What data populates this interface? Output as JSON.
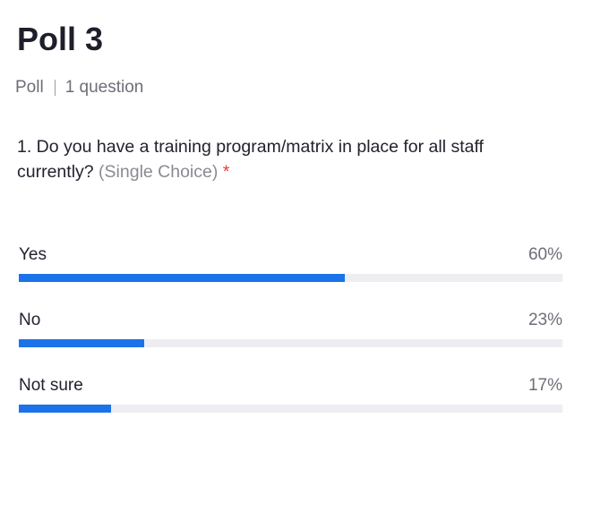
{
  "poll": {
    "title": "Poll 3",
    "type_label": "Poll",
    "question_count": "1 question"
  },
  "question": {
    "text": "1. Do you have a training program/matrix in place for all staff currently?",
    "type": "(Single Choice)",
    "required_marker": "*"
  },
  "options": [
    {
      "label": "Yes",
      "percent_text": "60%",
      "percent": 60
    },
    {
      "label": "No",
      "percent_text": "23%",
      "percent": 23
    },
    {
      "label": "Not sure",
      "percent_text": "17%",
      "percent": 17
    }
  ],
  "colors": {
    "bar_fill": "#1a73e8",
    "bar_track": "#ededf2",
    "required": "#e0403a"
  }
}
